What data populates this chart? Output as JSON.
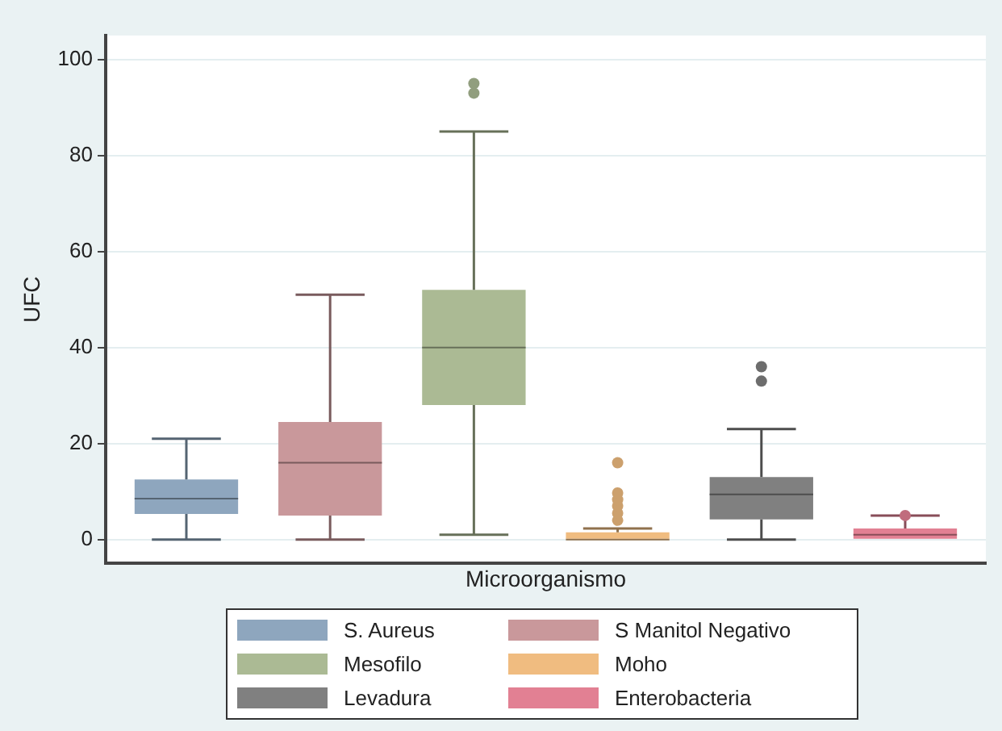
{
  "chart_data": {
    "type": "box",
    "xlabel": "Microorganismo",
    "ylabel": "UFC",
    "categories": [
      null
    ],
    "ylim": [
      -5,
      105
    ],
    "yticks": [
      0,
      20,
      40,
      60,
      80,
      100
    ],
    "grid": "y",
    "legend": "bottom",
    "series": [
      {
        "name": "S. Aureus",
        "color": "#8ea6be",
        "boxes": [
          {
            "low": 0,
            "q1": 5.3,
            "median": 8.5,
            "q3": 12.5,
            "high": 21
          }
        ]
      },
      {
        "name": "S Manitol Negativo",
        "color": "#c9989b",
        "boxes": [
          {
            "low": 0,
            "q1": 5,
            "median": 16,
            "q3": 24.5,
            "high": 51
          }
        ]
      },
      {
        "name": "Mesofilo",
        "color": "#abba94",
        "boxes": [
          {
            "low": 1,
            "q1": 28,
            "median": 40,
            "q3": 52,
            "high": 85,
            "outliers": [
              93,
              95
            ]
          }
        ]
      },
      {
        "name": "Moho",
        "color": "#f0bc80",
        "boxes": [
          {
            "low": 0,
            "q1": 0,
            "median": 0,
            "q3": 1.5,
            "high": 2.3,
            "outliers": [
              4,
              5.5,
              7,
              8.3,
              9.7,
              16
            ]
          }
        ]
      },
      {
        "name": "Levadura",
        "color": "#808080",
        "boxes": [
          {
            "low": 0,
            "q1": 4.2,
            "median": 9.4,
            "q3": 13,
            "high": 23,
            "outliers": [
              33,
              36
            ]
          }
        ]
      },
      {
        "name": "Enterobacteria",
        "color": "#e28093",
        "boxes": [
          {
            "low": 0,
            "q1": 0,
            "median": 1,
            "q3": 2.3,
            "high": 5,
            "outliers": [
              5
            ]
          }
        ]
      }
    ]
  }
}
